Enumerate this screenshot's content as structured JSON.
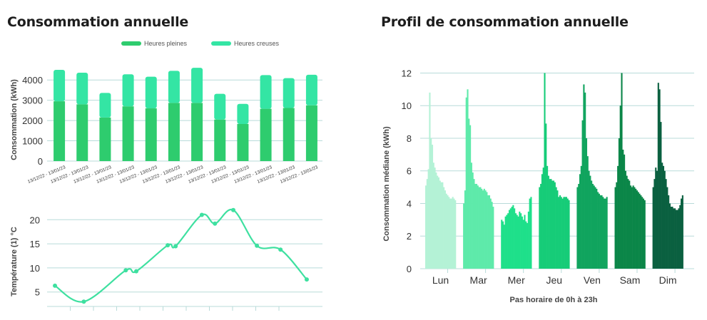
{
  "left_title": "Consommation annuelle",
  "right_title": "Profil de consommation annuelle",
  "colors": {
    "pleines": "#2ecc6e",
    "creuses": "#34e5a4",
    "temp": "#3ee0a0",
    "grid": "#b8dbd9",
    "days": [
      "#b4f2d6",
      "#5eeaaa",
      "#1ee08a",
      "#16cc78",
      "#10a45e",
      "#0b8648",
      "#0a6040"
    ]
  },
  "chart_data": [
    {
      "type": "bar",
      "stacked": true,
      "ylabel": "Consommation (kWh)",
      "ylim": [
        0,
        4500
      ],
      "yticks": [
        0,
        1000,
        2000,
        3000,
        4000
      ],
      "categories": [
        "13/12/22 - 13/01/23",
        "13/12/22 - 13/01/23",
        "13/12/22 - 13/01/23",
        "13/12/22 - 13/01/23",
        "13/12/22 - 13/01/23",
        "13/12/22 - 13/01/23",
        "13/12/22 - 13/01/23",
        "13/12/22 - 13/01/23",
        "13/12/22 - 13/01/23",
        "13/12/22 - 13/01/23",
        "13/12/22 - 13/01/23",
        "13/12/22 - 13/01/23"
      ],
      "legend": "top-right",
      "series": [
        {
          "name": "Heures pleines",
          "values": [
            2950,
            2800,
            2150,
            2700,
            2600,
            2870,
            2870,
            2050,
            1830,
            2580,
            2620,
            2750
          ]
        },
        {
          "name": "Heures creuses",
          "values": [
            1550,
            1560,
            1210,
            1580,
            1560,
            1580,
            1730,
            1270,
            990,
            1660,
            1470,
            1510
          ]
        }
      ]
    },
    {
      "type": "line",
      "smooth": true,
      "ylabel": "Température (1) °C",
      "ylim": [
        2,
        23
      ],
      "yticks": [
        5,
        10,
        15,
        20
      ],
      "series": [
        {
          "x": [
            0.3,
            1.4,
            3.0,
            3.4,
            4.6,
            4.9,
            5.9,
            6.4,
            7.1,
            8.0,
            8.9,
            9.9
          ],
          "values": [
            6.3,
            3.0,
            9.5,
            9.3,
            14.7,
            14.5,
            21.0,
            19.2,
            22.0,
            14.6,
            13.8,
            7.6
          ]
        }
      ]
    },
    {
      "type": "bar",
      "ylabel": "Consommation médiane (kWh)",
      "xlabel": "Pas horaire de 0h à 23h",
      "ylim": [
        0,
        12.5
      ],
      "yticks": [
        0,
        2,
        4,
        6,
        8,
        10,
        12
      ],
      "categories": [
        "Lun",
        "Mar",
        "Mer",
        "Jeu",
        "Ven",
        "Sam",
        "Dim"
      ],
      "hourly": [
        [
          5.1,
          5.5,
          6.1,
          10.8,
          8.0,
          7.6,
          6.5,
          6.2,
          5.9,
          5.7,
          5.6,
          5.4,
          5.3,
          5.3,
          5.0,
          4.8,
          4.6,
          4.5,
          4.4,
          4.3,
          4.3,
          4.4,
          4.3,
          4.2
        ],
        [
          4.0,
          4.8,
          10.5,
          11.0,
          9.2,
          8.8,
          6.5,
          5.9,
          5.5,
          5.2,
          5.2,
          5.1,
          5.0,
          5.0,
          4.9,
          4.8,
          4.9,
          4.8,
          4.7,
          4.5,
          4.5,
          4.3,
          4.1,
          3.8
        ],
        [
          3.0,
          2.9,
          2.7,
          3.2,
          3.3,
          3.4,
          3.6,
          3.7,
          3.8,
          3.9,
          3.7,
          3.4,
          3.3,
          3.2,
          3.5,
          3.4,
          3.2,
          3.0,
          3.3,
          2.9,
          2.8,
          3.5,
          4.3,
          4.4
        ],
        [
          5.0,
          5.2,
          5.8,
          6.2,
          12.0,
          8.9,
          6.3,
          5.7,
          5.5,
          5.5,
          5.4,
          5.4,
          5.3,
          5.0,
          4.8,
          4.4,
          4.5,
          4.4,
          4.3,
          4.4,
          4.4,
          4.4,
          4.3,
          4.2
        ],
        [
          5.0,
          5.2,
          5.8,
          6.3,
          9.1,
          11.3,
          10.8,
          8.0,
          6.9,
          6.0,
          5.7,
          5.4,
          5.2,
          5.1,
          5.0,
          4.9,
          4.7,
          4.6,
          4.5,
          4.5,
          4.4,
          4.3,
          4.3,
          4.4
        ],
        [
          5.0,
          5.3,
          6.3,
          8.0,
          10.0,
          12.0,
          7.3,
          7.0,
          6.0,
          5.7,
          5.5,
          5.4,
          5.1,
          5.0,
          5.1,
          5.0,
          4.9,
          4.8,
          4.7,
          4.6,
          4.5,
          4.4,
          4.3,
          4.2
        ],
        [
          5.0,
          5.5,
          6.2,
          6.0,
          11.4,
          11.0,
          9.0,
          6.5,
          6.3,
          6.0,
          5.5,
          5.0,
          4.5,
          4.0,
          3.8,
          3.8,
          3.7,
          3.7,
          3.6,
          3.6,
          3.7,
          3.9,
          4.3,
          4.5
        ]
      ]
    }
  ]
}
